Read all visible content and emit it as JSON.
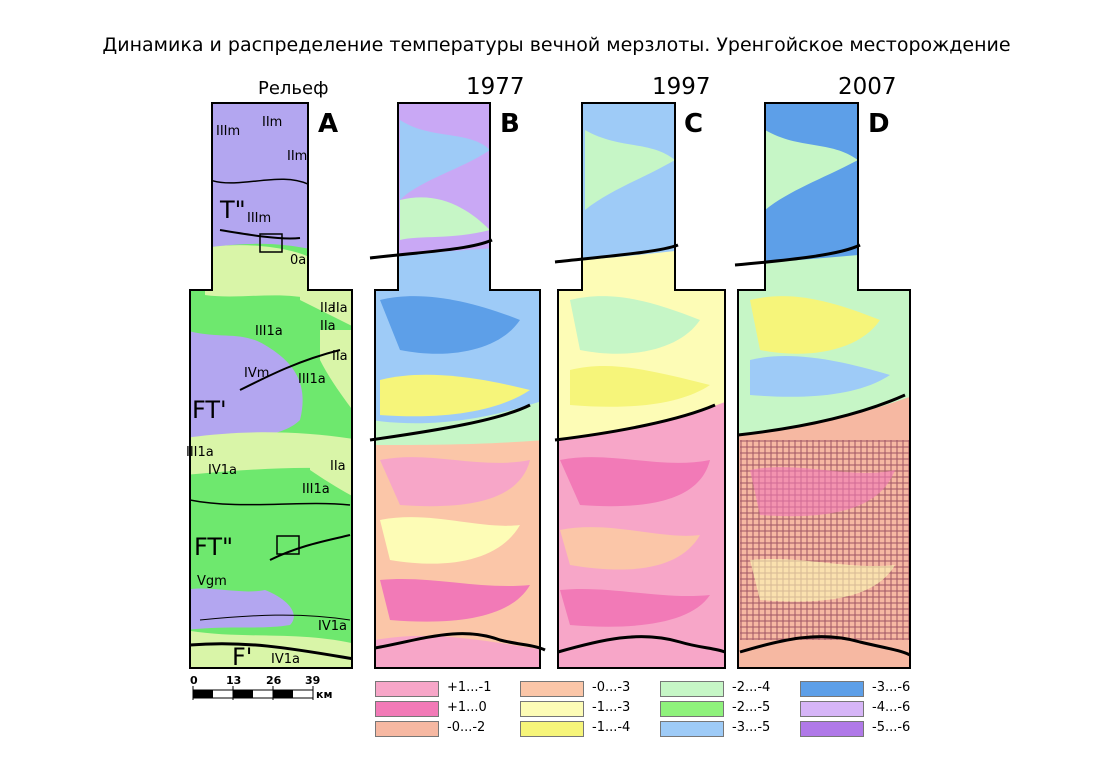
{
  "title": "Динамика и распределение температуры вечной мерзлоты. Уренгойское месторождение",
  "panels": [
    {
      "id": "A",
      "caption": "Рельеф",
      "letter": "A"
    },
    {
      "id": "B",
      "caption": "1977",
      "letter": "B"
    },
    {
      "id": "C",
      "caption": "1997",
      "letter": "C"
    },
    {
      "id": "D",
      "caption": "2007",
      "letter": "D"
    }
  ],
  "zones": [
    "T\"",
    "FT'",
    "FT\"",
    "F'"
  ],
  "units": [
    "IIIm",
    "IIm",
    "IIm",
    "IIIm",
    "0a",
    "IIa",
    "IIa",
    "III1a",
    "IIa",
    "IIa",
    "IVm",
    "III1a",
    "III1a",
    "IIa",
    "IV1a",
    "III1a",
    "Vgm",
    "IV1a",
    "IV1a"
  ],
  "scale": {
    "ticks": [
      "0",
      "13",
      "26",
      "39"
    ],
    "unit": "км"
  },
  "legend": [
    {
      "label": "+1...-1",
      "color": "#f7a6c8"
    },
    {
      "label": "+1...0",
      "color": "#f27ab7"
    },
    {
      "label": "-0...-2",
      "color": "#f6b8a2"
    },
    {
      "label": "-0...-3",
      "color": "#fbc6a8"
    },
    {
      "label": "-1...-3",
      "color": "#fdfcb6"
    },
    {
      "label": "-1...-4",
      "color": "#f6f57a"
    },
    {
      "label": "-2...-4",
      "color": "#c6f6c6"
    },
    {
      "label": "-2...-5",
      "color": "#8ff27c"
    },
    {
      "label": "-3...-5",
      "color": "#9ecbf7"
    },
    {
      "label": "-3...-6",
      "color": "#5d9fe8"
    },
    {
      "label": "-4...-6",
      "color": "#d6b5f7"
    },
    {
      "label": "-5...-6",
      "color": "#b079e8"
    }
  ],
  "colors": {
    "relief_light_green": "#d9f5a8",
    "relief_green": "#6ee86e",
    "relief_purple": "#b3a6f0"
  }
}
